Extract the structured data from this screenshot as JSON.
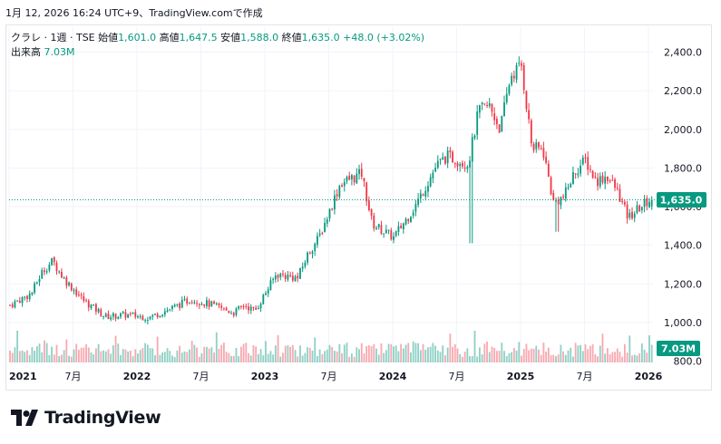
{
  "header": {
    "snapshot_text": "1月 12, 2026 16:24 UTC+9、TradingView.comで作成"
  },
  "legend": {
    "symbol": "クラレ · 1週 · TSE",
    "open_label": "始値",
    "open": "1,601.0",
    "high_label": "高値",
    "high": "1,647.5",
    "low_label": "安値",
    "low": "1,588.0",
    "close_label": "終値",
    "close": "1,635.0",
    "change": "+48.0 (+3.02%)",
    "volume_label": "出来高",
    "volume": "7.03M"
  },
  "colors": {
    "up": "#089981",
    "down": "#f23645",
    "up_volume": "#8fd0c5",
    "down_volume": "#f7a9b0",
    "grid": "#f0f3fa",
    "axis_text": "#131722"
  },
  "brand": {
    "name": "TradingView",
    "logo_icon": "tradingview-logo-icon"
  },
  "chart_data": {
    "type": "candlestick",
    "interval": "1 week",
    "y_axis": {
      "ticks": [
        "2,400.0",
        "2,200.0",
        "2,000.0",
        "1,800.0",
        "1,600.0",
        "1,400.0",
        "1,200.0",
        "1,000.0",
        "800.0"
      ],
      "ylim": [
        800,
        2460
      ]
    },
    "x_axis": {
      "ticks": [
        "2021",
        "7月",
        "2022",
        "7月",
        "2023",
        "7月",
        "2024",
        "7月",
        "2025",
        "7月",
        "2026"
      ]
    },
    "last_price_label": "1,635.0",
    "last_volume_label": "7.03M",
    "price_path_anchors": [
      {
        "x": "2021-01",
        "y": 1090
      },
      {
        "x": "2021-03",
        "y": 1150
      },
      {
        "x": "2021-04",
        "y": 1260
      },
      {
        "x": "2021-05",
        "y": 1320
      },
      {
        "x": "2021-06",
        "y": 1230
      },
      {
        "x": "2021-08",
        "y": 1110
      },
      {
        "x": "2021-10",
        "y": 1030
      },
      {
        "x": "2021-12",
        "y": 1040
      },
      {
        "x": "2022-02",
        "y": 1025
      },
      {
        "x": "2022-04",
        "y": 1070
      },
      {
        "x": "2022-06",
        "y": 1120
      },
      {
        "x": "2022-08",
        "y": 1090
      },
      {
        "x": "2022-10",
        "y": 1050
      },
      {
        "x": "2022-11",
        "y": 1090
      },
      {
        "x": "2022-12",
        "y": 1060
      },
      {
        "x": "2023-02",
        "y": 1250
      },
      {
        "x": "2023-04",
        "y": 1230
      },
      {
        "x": "2023-05",
        "y": 1360
      },
      {
        "x": "2023-06",
        "y": 1440
      },
      {
        "x": "2023-08",
        "y": 1720
      },
      {
        "x": "2023-10",
        "y": 1770
      },
      {
        "x": "2023-11",
        "y": 1510
      },
      {
        "x": "2024-01",
        "y": 1440
      },
      {
        "x": "2024-03",
        "y": 1600
      },
      {
        "x": "2024-05",
        "y": 1810
      },
      {
        "x": "2024-06",
        "y": 1860
      },
      {
        "x": "2024-08",
        "y": 1820
      },
      {
        "x": "2024-09",
        "y": 2100
      },
      {
        "x": "2024-10",
        "y": 2120
      },
      {
        "x": "2024-11",
        "y": 2000
      },
      {
        "x": "2024-12",
        "y": 2280
      },
      {
        "x": "2025-01",
        "y": 2330
      },
      {
        "x": "2025-02",
        "y": 1900
      },
      {
        "x": "2025-03",
        "y": 1900
      },
      {
        "x": "2025-04",
        "y": 1620
      },
      {
        "x": "2025-05",
        "y": 1650
      },
      {
        "x": "2025-06",
        "y": 1780
      },
      {
        "x": "2025-07",
        "y": 1840
      },
      {
        "x": "2025-08",
        "y": 1730
      },
      {
        "x": "2025-09",
        "y": 1760
      },
      {
        "x": "2025-10",
        "y": 1680
      },
      {
        "x": "2025-11",
        "y": 1540
      },
      {
        "x": "2025-12",
        "y": 1590
      },
      {
        "x": "2026-01",
        "y": 1635
      }
    ],
    "notable_lows": [
      {
        "x": "2024-08",
        "y": 1410
      },
      {
        "x": "2025-04",
        "y": 1470
      }
    ]
  }
}
